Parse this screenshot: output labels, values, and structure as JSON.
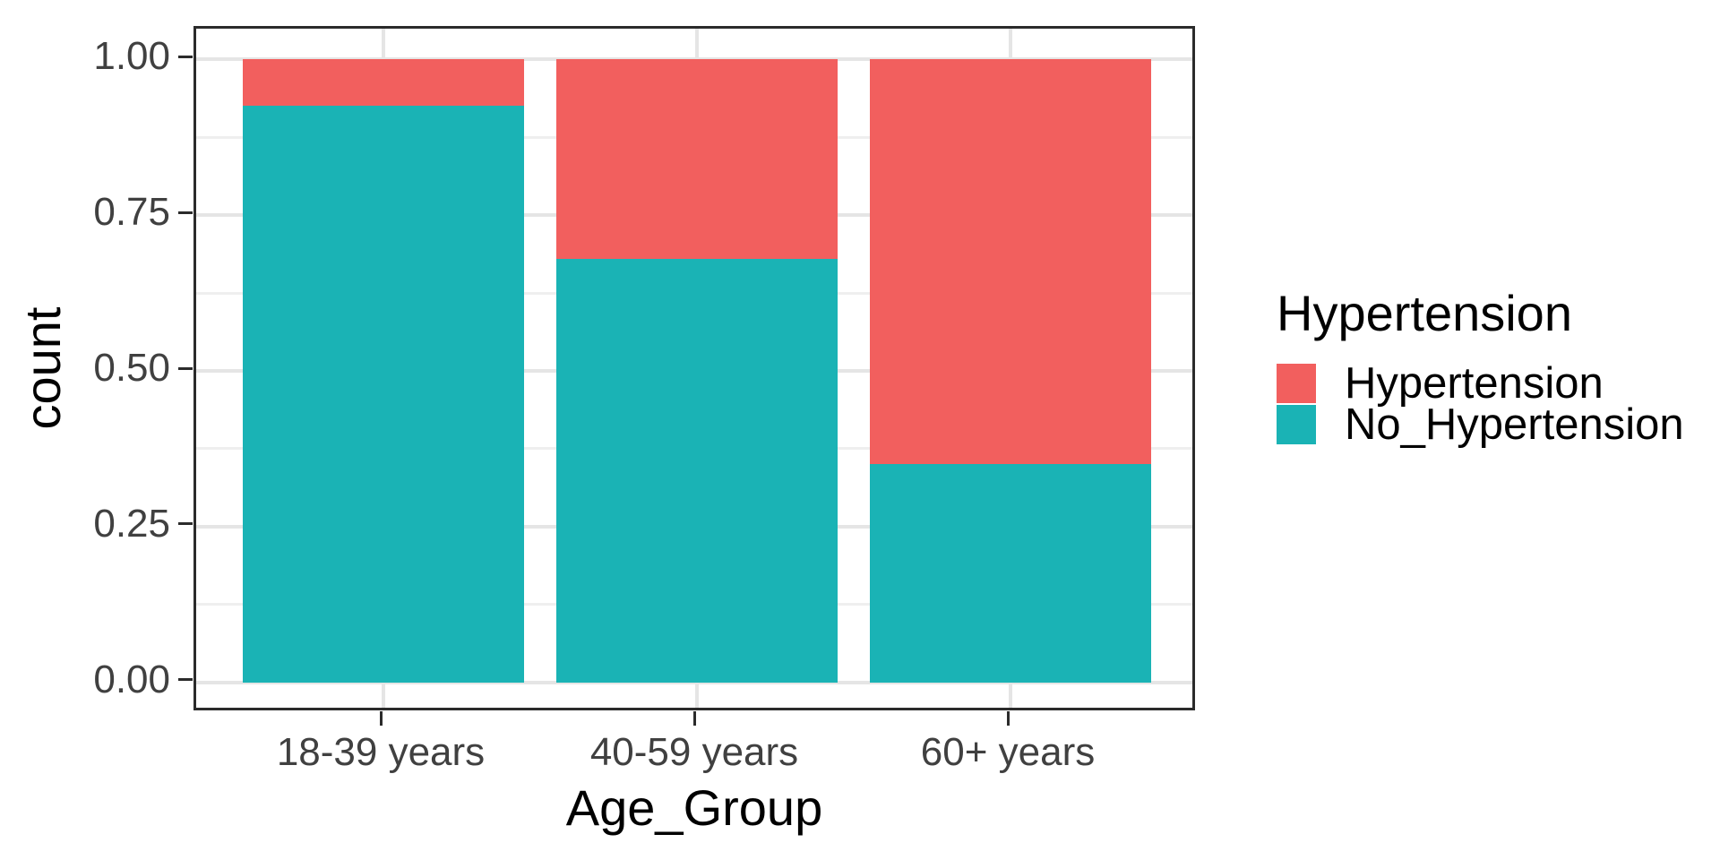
{
  "chart_data": {
    "type": "bar",
    "subtype": "stacked-fill-proportion",
    "title": "",
    "xlabel": "Age_Group",
    "ylabel": "count",
    "categories": [
      "18-39 years",
      "40-59 years",
      "60+ years"
    ],
    "series": [
      {
        "name": "Hypertension",
        "color": "#F25F5E",
        "values": [
          0.075,
          0.32,
          0.65
        ]
      },
      {
        "name": "No_Hypertension",
        "color": "#1AB3B5",
        "values": [
          0.925,
          0.68,
          0.35
        ]
      }
    ],
    "stack_order_bottom_to_top": [
      "No_Hypertension",
      "Hypertension"
    ],
    "ylim": [
      0,
      1
    ],
    "y_ticks": [
      {
        "value": 0.0,
        "label": "0.00"
      },
      {
        "value": 0.25,
        "label": "0.25"
      },
      {
        "value": 0.5,
        "label": "0.50"
      },
      {
        "value": 0.75,
        "label": "0.75"
      },
      {
        "value": 1.0,
        "label": "1.00"
      }
    ],
    "y_minor_ticks": [
      0.125,
      0.375,
      0.625,
      0.875
    ],
    "grid": true,
    "legend": {
      "title": "Hypertension",
      "position": "right",
      "entries": [
        "Hypertension",
        "No_Hypertension"
      ]
    }
  },
  "colors": {
    "background": "#FFFFFF",
    "panel_border": "#2B2B2B",
    "tick_mark": "#2B2B2B",
    "grid_major": "#E5E5E5",
    "grid_minor": "#EFEFEF",
    "tick_label": "#404040",
    "axis_title": "#000000",
    "legend_text": "#000000"
  }
}
